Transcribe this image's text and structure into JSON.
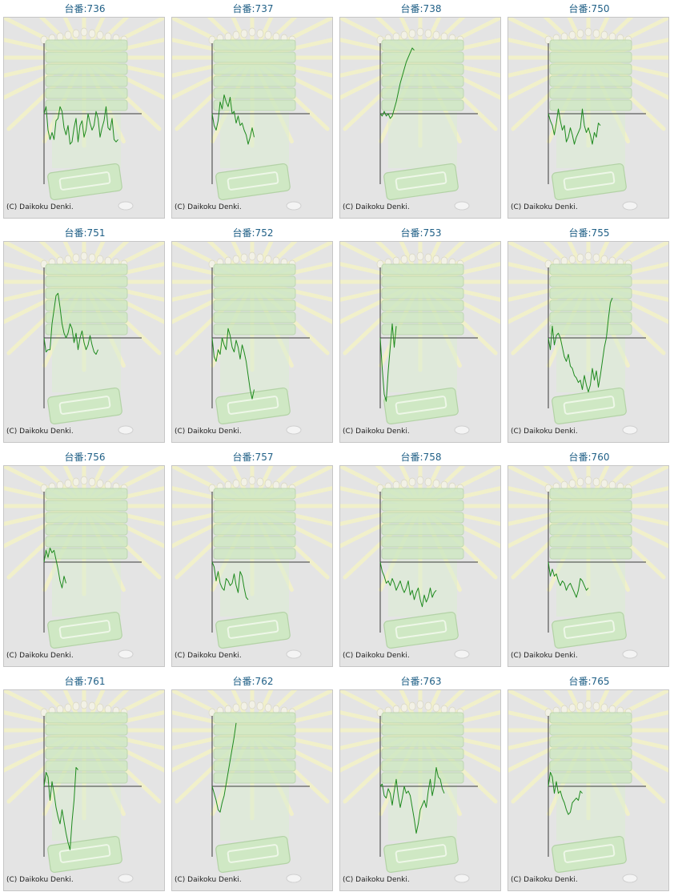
{
  "colors": {
    "title": "#1f5f86",
    "line": "#1e8a1e",
    "axis": "#3a3a3a",
    "background": "#e4e4e4",
    "art_green": "#cfe8c4",
    "art_ray": "#f3f2c8"
  },
  "chart_data": [
    {
      "type": "line",
      "title": "台番:736",
      "credit": "(C) Daikoku Denki.",
      "ylim": [
        -3,
        3
      ],
      "values": [
        0,
        0.3,
        -0.7,
        -1.1,
        -0.8,
        -1.1,
        -0.3,
        -0.2,
        0.3,
        0.1,
        -0.6,
        -0.9,
        -0.5,
        -1.3,
        -1.2,
        -0.6,
        -0.2,
        -1.2,
        -0.5,
        -0.3,
        -1.0,
        -0.7,
        0.0,
        -0.4,
        -0.7,
        -0.5,
        0.1,
        -0.2,
        -1.0,
        -0.6,
        -0.3,
        0.3,
        -0.6,
        -0.7,
        -0.2,
        -1.1,
        -1.2,
        -1.1
      ]
    },
    {
      "type": "line",
      "title": "台番:737",
      "credit": "(C) Daikoku Denki.",
      "ylim": [
        -3,
        3
      ],
      "values": [
        0,
        -0.5,
        -0.7,
        -0.3,
        0.5,
        0.2,
        0.8,
        0.5,
        0.3,
        0.7,
        0.0,
        0.1,
        -0.4,
        -0.1,
        -0.5,
        -0.4,
        -0.7,
        -0.9,
        -1.3,
        -1.0,
        -0.6,
        -1.0
      ]
    },
    {
      "type": "line",
      "title": "台番:738",
      "credit": "(C) Daikoku Denki.",
      "ylim": [
        -3,
        3
      ],
      "values": [
        0,
        -0.1,
        0.1,
        -0.1,
        0.0,
        -0.2,
        -0.1,
        0.2,
        0.5,
        0.9,
        1.3,
        1.6,
        1.9,
        2.2,
        2.4,
        2.6,
        2.8,
        2.7
      ]
    },
    {
      "type": "line",
      "title": "台番:750",
      "credit": "(C) Daikoku Denki.",
      "ylim": [
        -3,
        3
      ],
      "values": [
        0,
        -0.3,
        -0.5,
        -0.9,
        -0.4,
        0.2,
        -0.3,
        -0.7,
        -0.5,
        -1.2,
        -1.0,
        -0.6,
        -0.9,
        -1.3,
        -1.0,
        -0.8,
        -0.6,
        0.2,
        -0.5,
        -0.8,
        -0.6,
        -0.9,
        -1.3,
        -0.8,
        -1.0,
        -0.4,
        -0.5
      ]
    },
    {
      "type": "line",
      "title": "台番:751",
      "credit": "(C) Daikoku Denki.",
      "ylim": [
        -3,
        3
      ],
      "values": [
        0,
        -0.6,
        -0.5,
        -0.5,
        0.6,
        1.2,
        1.8,
        1.9,
        1.3,
        0.6,
        0.2,
        0.0,
        0.2,
        0.6,
        0.4,
        -0.2,
        0.2,
        -0.5,
        0.0,
        0.3,
        -0.2,
        -0.5,
        -0.3,
        0.1,
        -0.3,
        -0.6,
        -0.7,
        -0.5
      ]
    },
    {
      "type": "line",
      "title": "台番:752",
      "credit": "(C) Daikoku Denki.",
      "ylim": [
        -3,
        3
      ],
      "values": [
        0,
        -0.8,
        -1.0,
        -0.5,
        -0.7,
        0.0,
        -0.3,
        -0.5,
        0.4,
        0.1,
        -0.4,
        -0.6,
        -0.1,
        -0.4,
        -0.9,
        -0.3,
        -0.6,
        -1.0,
        -1.6,
        -2.2,
        -2.6,
        -2.2
      ]
    },
    {
      "type": "line",
      "title": "台番:753",
      "credit": "(C) Daikoku Denki.",
      "ylim": [
        -3,
        3
      ],
      "values": [
        0,
        -1.3,
        -2.4,
        -2.7,
        -1.4,
        -0.4,
        0.6,
        -0.4,
        0.5
      ]
    },
    {
      "type": "line",
      "title": "台番:755",
      "credit": "(C) Daikoku Denki.",
      "ylim": [
        -3,
        3
      ],
      "values": [
        0,
        -0.5,
        0.5,
        -0.3,
        0.1,
        0.2,
        0.0,
        -0.4,
        -0.8,
        -1.0,
        -0.7,
        -1.2,
        -1.3,
        -1.6,
        -1.7,
        -1.9,
        -1.8,
        -2.2,
        -1.6,
        -2.0,
        -2.3,
        -2.0,
        -1.3,
        -1.8,
        -1.4,
        -2.1,
        -1.6,
        -1.0,
        -0.4,
        0.0,
        0.8,
        1.5,
        1.7
      ]
    },
    {
      "type": "line",
      "title": "台番:756",
      "credit": "(C) Daikoku Denki.",
      "ylim": [
        -3,
        3
      ],
      "values": [
        0,
        0.5,
        0.2,
        0.6,
        0.4,
        0.5,
        0.1,
        -0.3,
        -0.8,
        -1.1,
        -0.6,
        -0.9
      ]
    },
    {
      "type": "line",
      "title": "台番:757",
      "credit": "(C) Daikoku Denki.",
      "ylim": [
        -3,
        3
      ],
      "values": [
        0,
        -0.2,
        -0.8,
        -0.4,
        -0.9,
        -1.1,
        -1.2,
        -0.7,
        -0.8,
        -1.0,
        -0.9,
        -0.5,
        -1.0,
        -1.3,
        -0.4,
        -0.6,
        -1.1,
        -1.5,
        -1.6
      ]
    },
    {
      "type": "line",
      "title": "台番:758",
      "credit": "(C) Daikoku Denki.",
      "ylim": [
        -3,
        3
      ],
      "values": [
        0,
        -0.4,
        -0.6,
        -0.9,
        -0.8,
        -1.0,
        -0.7,
        -0.9,
        -1.2,
        -1.0,
        -0.8,
        -1.1,
        -1.3,
        -1.1,
        -0.8,
        -1.4,
        -1.2,
        -1.6,
        -1.3,
        -1.1,
        -1.6,
        -1.9,
        -1.4,
        -1.7,
        -1.5,
        -1.1,
        -1.5,
        -1.3,
        -1.2
      ]
    },
    {
      "type": "line",
      "title": "台番:760",
      "credit": "(C) Daikoku Denki.",
      "ylim": [
        -3,
        3
      ],
      "values": [
        0,
        -0.6,
        -0.3,
        -0.6,
        -0.5,
        -0.8,
        -1.0,
        -0.8,
        -0.9,
        -1.2,
        -1.0,
        -0.9,
        -1.1,
        -1.3,
        -1.5,
        -1.2,
        -0.7,
        -0.8,
        -1.0,
        -1.2,
        -1.1
      ]
    },
    {
      "type": "line",
      "title": "台番:761",
      "credit": "(C) Daikoku Denki.",
      "ylim": [
        -3,
        3
      ],
      "values": [
        0,
        0.6,
        0.4,
        -0.6,
        0.2,
        -0.3,
        -0.9,
        -1.3,
        -1.6,
        -1.0,
        -1.5,
        -2.0,
        -2.4,
        -2.7,
        -1.5,
        -0.6,
        0.8,
        0.7
      ]
    },
    {
      "type": "line",
      "title": "台番:762",
      "credit": "(C) Daikoku Denki.",
      "ylim": [
        -3,
        3
      ],
      "values": [
        0,
        -0.3,
        -0.6,
        -1.0,
        -1.1,
        -0.7,
        -0.4,
        0.1,
        0.6,
        1.1,
        1.6,
        2.1,
        2.7
      ]
    },
    {
      "type": "line",
      "title": "台番:763",
      "credit": "(C) Daikoku Denki.",
      "ylim": [
        -3,
        3
      ],
      "values": [
        0,
        0.1,
        -0.4,
        -0.5,
        -0.1,
        -0.3,
        -0.8,
        -0.2,
        0.3,
        -0.4,
        -0.9,
        -0.5,
        0.0,
        -0.3,
        -0.2,
        -0.4,
        -0.9,
        -1.4,
        -2.0,
        -1.6,
        -1.0,
        -0.8,
        -0.6,
        -0.9,
        -0.2,
        0.3,
        -0.4,
        0.0,
        0.8,
        0.4,
        0.3,
        -0.1,
        -0.3
      ]
    },
    {
      "type": "line",
      "title": "台番:765",
      "credit": "(C) Daikoku Denki.",
      "ylim": [
        -3,
        3
      ],
      "values": [
        0,
        0.6,
        0.4,
        -0.3,
        0.2,
        -0.3,
        -0.2,
        -0.5,
        -0.7,
        -1.0,
        -1.2,
        -1.1,
        -0.7,
        -0.6,
        -0.5,
        -0.6,
        -0.2,
        -0.3
      ]
    }
  ]
}
